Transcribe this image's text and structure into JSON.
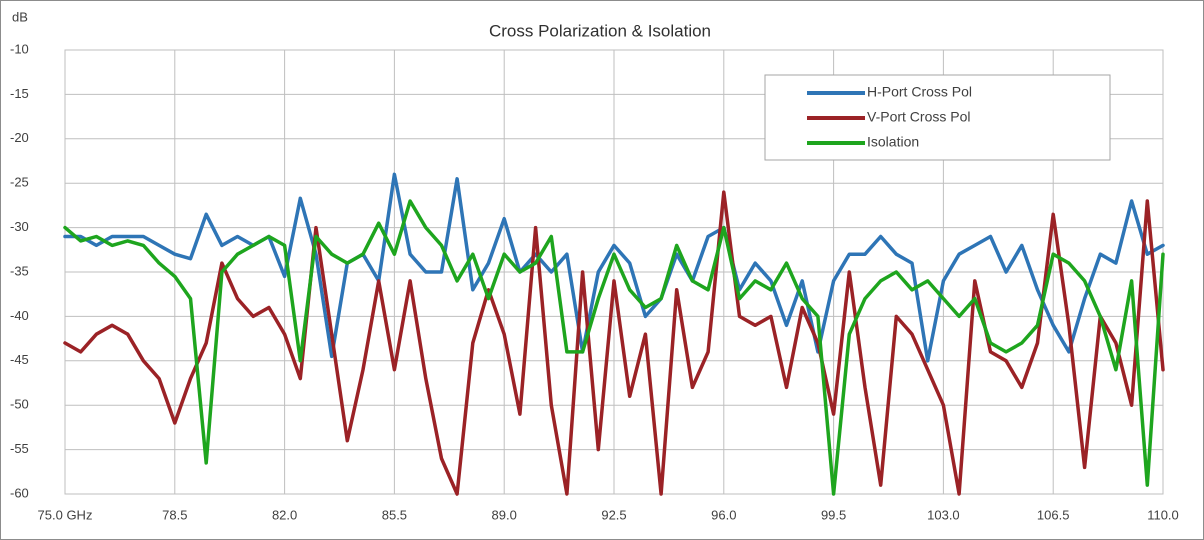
{
  "chart_data": {
    "type": "line",
    "title": "Cross Polarization & Isolation",
    "y_label": "dB",
    "x": [
      75,
      75.5,
      76,
      76.5,
      77,
      77.5,
      78,
      78.5,
      79,
      79.5,
      80,
      80.5,
      81,
      81.5,
      82,
      82.5,
      83,
      83.5,
      84,
      84.5,
      85,
      85.5,
      86,
      86.5,
      87,
      87.5,
      88,
      88.5,
      89,
      89.5,
      90,
      90.5,
      91,
      91.5,
      92,
      92.5,
      93,
      93.5,
      94,
      94.5,
      95,
      95.5,
      96,
      96.5,
      97,
      97.5,
      98,
      98.5,
      99,
      99.5,
      100,
      100.5,
      101,
      101.5,
      102,
      102.5,
      103,
      103.5,
      104,
      104.5,
      105,
      105.5,
      106,
      106.5,
      107,
      107.5,
      108,
      108.5,
      109,
      109.5,
      110
    ],
    "series": [
      {
        "name": "H-Port Cross Pol",
        "color": "#2e75b6",
        "values": [
          -31,
          -31,
          -32,
          -31,
          -31,
          -31,
          -32,
          -33,
          -33.5,
          -28.5,
          -32,
          -31,
          -32,
          -31,
          -35.5,
          -26.7,
          -33,
          -44.5,
          -34,
          -33,
          -36,
          -24,
          -33,
          -35,
          -35,
          -24.5,
          -37,
          -34,
          -29,
          -35,
          -33,
          -35,
          -33,
          -44,
          -35,
          -32,
          -34,
          -40,
          -38,
          -33,
          -36,
          -31,
          -30,
          -37,
          -34,
          -36,
          -41,
          -36,
          -44,
          -36,
          -33,
          -33,
          -31,
          -33,
          -34,
          -45,
          -36,
          -33,
          -32,
          -31,
          -35,
          -32,
          -37,
          -41,
          -44,
          -38,
          -33,
          -34,
          -27,
          -33,
          -32
        ]
      },
      {
        "name": "V-Port Cross Pol",
        "color": "#9b2226",
        "values": [
          -43,
          -44,
          -42,
          -41,
          -42,
          -45,
          -47,
          -52,
          -47,
          -43,
          -34,
          -38,
          -40,
          -39,
          -42,
          -47,
          -30,
          -42,
          -54,
          -46,
          -36,
          -46,
          -36,
          -47,
          -56,
          -60,
          -43,
          -37,
          -42,
          -51,
          -30,
          -50,
          -60,
          -35,
          -55,
          -36,
          -49,
          -42,
          -60,
          -37,
          -48,
          -44,
          -26,
          -40,
          -41,
          -40,
          -48,
          -39,
          -43,
          -51,
          -35,
          -48,
          -59,
          -40,
          -42,
          -46,
          -50,
          -60,
          -36,
          -44,
          -45,
          -48,
          -43,
          -28.5,
          -41,
          -57,
          -40,
          -43,
          -50,
          -27,
          -46
        ]
      },
      {
        "name": "Isolation",
        "color": "#1ea51e",
        "values": [
          -30,
          -31.5,
          -31,
          -32,
          -31.5,
          -32,
          -34,
          -35.5,
          -38,
          -56.5,
          -35,
          -33,
          -32,
          -31,
          -32,
          -45,
          -31,
          -33,
          -34,
          -33,
          -29.5,
          -33,
          -27,
          -30,
          -32,
          -36,
          -33,
          -38,
          -33,
          -35,
          -34,
          -31,
          -44,
          -44,
          -38,
          -33,
          -37,
          -39,
          -38,
          -32,
          -36,
          -37,
          -30,
          -38,
          -36,
          -37,
          -34,
          -38,
          -40,
          -60,
          -42,
          -38,
          -36,
          -35,
          -37,
          -36,
          -38,
          -40,
          -38,
          -43,
          -44,
          -43,
          -41,
          -33,
          -34,
          -36,
          -40,
          -46,
          -36,
          -59,
          -33
        ]
      }
    ],
    "xlim": [
      75,
      110
    ],
    "xticks": [
      {
        "value": 75,
        "label": "75.0 GHz"
      },
      78.5,
      {
        "value": 82,
        "label": "82.0"
      },
      85.5,
      {
        "value": 89,
        "label": "89.0"
      },
      92.5,
      {
        "value": 96,
        "label": "96.0"
      },
      99.5,
      {
        "value": 103,
        "label": "103.0"
      },
      106.5,
      {
        "value": 110,
        "label": "110.0"
      }
    ],
    "ylim": [
      -60,
      -10
    ],
    "yticks": [
      -60,
      -55,
      -50,
      -45,
      -40,
      -35,
      -30,
      -25,
      -20,
      -15,
      -10
    ],
    "grid": true,
    "legend": "upper right"
  }
}
